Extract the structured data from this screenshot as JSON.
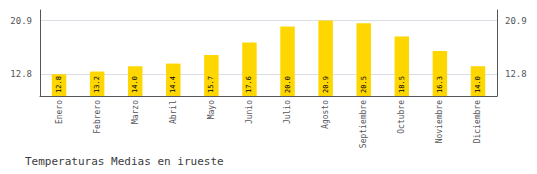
{
  "chart_data": {
    "type": "bar",
    "title": "Temperaturas Medias en irueste",
    "categories": [
      "Enero",
      "Febrero",
      "Marzo",
      "Abril",
      "Mayo",
      "Junio",
      "Julio",
      "Agosto",
      "Septiembre",
      "Octubre",
      "Noviembre",
      "Diciembre"
    ],
    "values": [
      12.8,
      13.2,
      14.0,
      14.4,
      15.7,
      17.6,
      20.0,
      20.9,
      20.5,
      18.5,
      16.3,
      14.0
    ],
    "value_labels": [
      "12.8",
      "13.2",
      "14.0",
      "14.4",
      "15.7",
      "17.6",
      "20.0",
      "20.9",
      "20.5",
      "18.5",
      "16.3",
      "14.0"
    ],
    "data_labels": true,
    "color": "#FFD700",
    "ylim": [
      9.5,
      22.5
    ],
    "yticks": [
      12.8,
      20.9
    ],
    "y2lim": [
      9.5,
      22.5
    ],
    "y2ticks": [
      12.8,
      20.9
    ],
    "grid": true
  }
}
